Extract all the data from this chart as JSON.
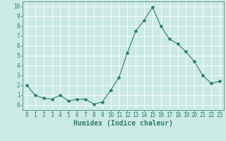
{
  "x": [
    0,
    1,
    2,
    3,
    4,
    5,
    6,
    7,
    8,
    9,
    10,
    11,
    12,
    13,
    14,
    15,
    16,
    17,
    18,
    19,
    20,
    21,
    22,
    23
  ],
  "y": [
    2,
    1,
    0.7,
    0.6,
    1,
    0.4,
    0.6,
    0.6,
    0.1,
    0.3,
    1.5,
    2.8,
    5.3,
    7.5,
    8.6,
    9.9,
    8.0,
    6.7,
    6.2,
    5.4,
    4.4,
    3.0,
    2.2,
    2.4
  ],
  "line_color": "#2e7d6e",
  "marker": "*",
  "marker_size": 3,
  "bg_color": "#cceae4",
  "grid_color": "#ffffff",
  "xlabel": "Humidex (Indice chaleur)",
  "xlim": [
    -0.5,
    23.5
  ],
  "ylim": [
    -0.5,
    10.5
  ],
  "yticks": [
    0,
    1,
    2,
    3,
    4,
    5,
    6,
    7,
    8,
    9,
    10
  ],
  "xticks": [
    0,
    1,
    2,
    3,
    4,
    5,
    6,
    7,
    8,
    9,
    10,
    11,
    12,
    13,
    14,
    15,
    16,
    17,
    18,
    19,
    20,
    21,
    22,
    23
  ],
  "label_color": "#2e7d6e",
  "xlabel_fontsize": 7,
  "tick_fontsize": 5.5,
  "axis_color": "#2e7d6e",
  "linewidth": 0.8
}
